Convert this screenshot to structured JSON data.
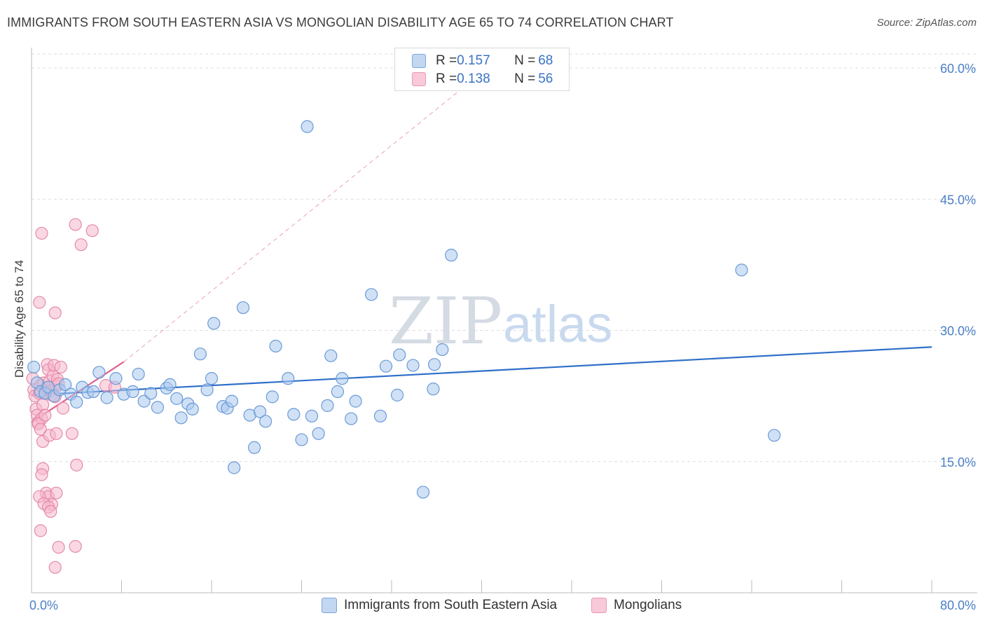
{
  "header": {
    "title": "IMMIGRANTS FROM SOUTH EASTERN ASIA VS MONGOLIAN DISABILITY AGE 65 TO 74 CORRELATION CHART",
    "source": "Source: ZipAtlas.com"
  },
  "watermark": {
    "zip": "ZIP",
    "atlas": "atlas"
  },
  "legend": {
    "series1": {
      "r_label": "R = ",
      "r_value": "0.157",
      "n_label": "N = ",
      "n_value": "68"
    },
    "series2": {
      "r_label": "R = ",
      "r_value": "0.138",
      "n_label": "N = ",
      "n_value": "56"
    }
  },
  "colors": {
    "blue_fill": "#aac8ee",
    "blue_stroke": "#6a9ad6",
    "blue_line": "#2f6fc9",
    "pink_fill": "#f5b8cc",
    "pink_stroke": "#e589a8",
    "pink_line": "#e0608e",
    "grid": "#dddddd",
    "tick_text": "#4a7fc8"
  },
  "chart_data": {
    "type": "scatter",
    "title": "IMMIGRANTS FROM SOUTH EASTERN ASIA VS MONGOLIAN DISABILITY AGE 65 TO 74 CORRELATION CHART",
    "xlabel": "",
    "ylabel": "Disability Age 65 to 74",
    "xlim": [
      0,
      80
    ],
    "ylim": [
      0,
      62
    ],
    "x_tick_labels": [
      "0.0%",
      "80.0%"
    ],
    "y_ticks": [
      15,
      30,
      45,
      60
    ],
    "y_tick_labels": [
      "15.0%",
      "30.0%",
      "45.0%",
      "60.0%"
    ],
    "grid": true,
    "legend_position": "bottom",
    "series": [
      {
        "name": "Immigrants from South Eastern Asia",
        "color": "#6a9ad6",
        "r": 0.157,
        "n": 68,
        "trend": {
          "x": [
            0,
            80
          ],
          "y": [
            22.6,
            28.1
          ]
        },
        "points": [
          [
            0.2,
            25.8
          ],
          [
            0.5,
            24.0
          ],
          [
            0.8,
            23.0
          ],
          [
            1.2,
            22.8
          ],
          [
            1.5,
            23.5
          ],
          [
            2.0,
            22.5
          ],
          [
            2.5,
            23.2
          ],
          [
            3.0,
            23.8
          ],
          [
            3.5,
            22.7
          ],
          [
            4.0,
            21.8
          ],
          [
            4.5,
            23.5
          ],
          [
            5.0,
            22.9
          ],
          [
            5.5,
            23.0
          ],
          [
            6.0,
            25.2
          ],
          [
            6.7,
            22.3
          ],
          [
            7.5,
            24.5
          ],
          [
            8.2,
            22.7
          ],
          [
            9.0,
            23.0
          ],
          [
            9.5,
            25.0
          ],
          [
            10.0,
            21.9
          ],
          [
            10.6,
            22.8
          ],
          [
            11.2,
            21.2
          ],
          [
            12.0,
            23.4
          ],
          [
            12.3,
            23.8
          ],
          [
            12.9,
            22.2
          ],
          [
            13.3,
            20.0
          ],
          [
            13.9,
            21.6
          ],
          [
            14.3,
            21.0
          ],
          [
            15.0,
            27.3
          ],
          [
            15.6,
            23.2
          ],
          [
            16.0,
            24.5
          ],
          [
            16.2,
            30.8
          ],
          [
            17.0,
            21.3
          ],
          [
            17.4,
            21.1
          ],
          [
            17.8,
            21.9
          ],
          [
            18.0,
            14.3
          ],
          [
            18.8,
            32.6
          ],
          [
            19.4,
            20.3
          ],
          [
            19.8,
            16.6
          ],
          [
            20.3,
            20.7
          ],
          [
            20.8,
            19.6
          ],
          [
            21.4,
            22.4
          ],
          [
            21.7,
            28.2
          ],
          [
            22.8,
            24.5
          ],
          [
            23.3,
            20.4
          ],
          [
            24.0,
            17.5
          ],
          [
            24.5,
            53.3
          ],
          [
            24.9,
            20.2
          ],
          [
            25.5,
            18.2
          ],
          [
            26.3,
            21.4
          ],
          [
            26.6,
            27.1
          ],
          [
            27.2,
            23.0
          ],
          [
            27.6,
            24.5
          ],
          [
            28.4,
            19.9
          ],
          [
            28.8,
            21.9
          ],
          [
            30.2,
            34.1
          ],
          [
            31.0,
            20.2
          ],
          [
            31.5,
            25.9
          ],
          [
            32.5,
            22.6
          ],
          [
            32.7,
            27.2
          ],
          [
            33.9,
            26.0
          ],
          [
            34.8,
            11.5
          ],
          [
            35.7,
            23.3
          ],
          [
            35.8,
            26.1
          ],
          [
            36.5,
            27.8
          ],
          [
            37.3,
            38.6
          ],
          [
            63.1,
            36.9
          ],
          [
            66.0,
            18.0
          ]
        ]
      },
      {
        "name": "Mongolians",
        "color": "#e589a8",
        "r": 0.138,
        "n": 56,
        "trend": {
          "x": [
            0,
            8.2
          ],
          "y": [
            19.5,
            26.4
          ]
        },
        "trend_extension": {
          "x": [
            8.2,
            41
          ],
          "y": [
            26.4,
            60.5
          ]
        },
        "points": [
          [
            0.1,
            24.5
          ],
          [
            0.2,
            23.2
          ],
          [
            0.3,
            22.5
          ],
          [
            0.4,
            21.0
          ],
          [
            0.5,
            20.3
          ],
          [
            0.6,
            19.5
          ],
          [
            0.7,
            22.8
          ],
          [
            0.8,
            23.7
          ],
          [
            0.9,
            19.9
          ],
          [
            1.0,
            21.5
          ],
          [
            1.1,
            24.0
          ],
          [
            1.2,
            22.9
          ],
          [
            1.3,
            23.4
          ],
          [
            1.4,
            26.1
          ],
          [
            1.5,
            25.5
          ],
          [
            1.6,
            24.2
          ],
          [
            1.7,
            23.1
          ],
          [
            1.8,
            22.6
          ],
          [
            1.9,
            24.8
          ],
          [
            2.0,
            26.0
          ],
          [
            2.1,
            22.4
          ],
          [
            2.2,
            23.6
          ],
          [
            2.3,
            24.4
          ],
          [
            2.4,
            23.9
          ],
          [
            2.6,
            25.8
          ],
          [
            2.8,
            21.1
          ],
          [
            0.6,
            19.3
          ],
          [
            0.8,
            18.7
          ],
          [
            1.0,
            17.3
          ],
          [
            1.2,
            20.3
          ],
          [
            1.6,
            18.0
          ],
          [
            2.2,
            18.2
          ],
          [
            3.6,
            18.2
          ],
          [
            4.0,
            14.6
          ],
          [
            1.0,
            14.2
          ],
          [
            0.9,
            13.5
          ],
          [
            1.3,
            11.4
          ],
          [
            1.5,
            11.0
          ],
          [
            1.8,
            10.1
          ],
          [
            2.2,
            11.4
          ],
          [
            0.7,
            11.0
          ],
          [
            1.1,
            10.2
          ],
          [
            1.5,
            9.8
          ],
          [
            1.7,
            9.3
          ],
          [
            0.8,
            7.1
          ],
          [
            2.4,
            5.2
          ],
          [
            3.9,
            5.3
          ],
          [
            2.1,
            2.9
          ],
          [
            0.9,
            41.1
          ],
          [
            3.9,
            42.1
          ],
          [
            4.4,
            39.8
          ],
          [
            5.4,
            41.4
          ],
          [
            0.7,
            33.2
          ],
          [
            2.1,
            32.0
          ],
          [
            6.6,
            23.7
          ],
          [
            7.4,
            23.5
          ]
        ]
      }
    ]
  }
}
